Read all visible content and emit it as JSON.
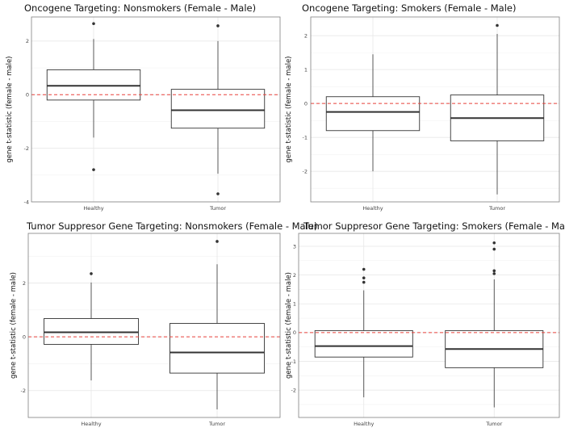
{
  "colors": {
    "background": "#ffffff",
    "grid_major": "#e6e6e6",
    "grid_minor": "#f2f2f2",
    "panel_border": "#7f7f7f",
    "box_fill": "#ffffff",
    "box_line": "#333333",
    "median_line": "#333333",
    "outlier": "#333333",
    "reference_line": "#e8403a"
  },
  "chart_data": [
    {
      "type": "boxplot",
      "title": "Oncogene Targeting: Nonsmokers (Female - Male)",
      "xlabel": "",
      "ylabel": "gene t-statistic (female - male)",
      "categories": [
        "Healthy",
        "Tumor"
      ],
      "ylim": [
        -4.0,
        2.9
      ],
      "yticks": [
        -4,
        -2,
        0,
        2
      ],
      "reference_line": 0,
      "boxes": [
        {
          "category": "Healthy",
          "whisker_low": -1.6,
          "q1": -0.2,
          "median": 0.33,
          "q3": 0.93,
          "whisker_high": 2.08,
          "outliers": [
            2.65,
            -2.8
          ]
        },
        {
          "category": "Tumor",
          "whisker_low": -2.95,
          "q1": -1.25,
          "median": -0.58,
          "q3": 0.2,
          "whisker_high": 2.0,
          "outliers": [
            2.57,
            -3.7
          ]
        }
      ]
    },
    {
      "type": "boxplot",
      "title": "Oncogene Targeting: Smokers (Female - Male)",
      "xlabel": "",
      "ylabel": "gene t-statistic (female - male)",
      "categories": [
        "Healthy",
        "Tumor"
      ],
      "ylim": [
        -2.9,
        2.55
      ],
      "yticks": [
        -2,
        -1,
        0,
        1,
        2
      ],
      "reference_line": 0,
      "boxes": [
        {
          "category": "Healthy",
          "whisker_low": -2.0,
          "q1": -0.8,
          "median": -0.25,
          "q3": 0.2,
          "whisker_high": 1.45,
          "outliers": []
        },
        {
          "category": "Tumor",
          "whisker_low": -2.68,
          "q1": -1.1,
          "median": -0.43,
          "q3": 0.25,
          "whisker_high": 2.05,
          "outliers": [
            2.3
          ]
        }
      ]
    },
    {
      "type": "boxplot",
      "title": "Tumor Suppresor Gene Targeting: Nonsmokers (Female - Male)",
      "xlabel": "",
      "ylabel": "gene t-statistic (female - male)",
      "categories": [
        "Healthy",
        "Tumor"
      ],
      "ylim": [
        -3.0,
        3.85
      ],
      "yticks": [
        -2,
        0,
        2
      ],
      "reference_line": 0,
      "boxes": [
        {
          "category": "Healthy",
          "whisker_low": -1.62,
          "q1": -0.28,
          "median": 0.17,
          "q3": 0.68,
          "whisker_high": 2.02,
          "outliers": [
            2.35
          ]
        },
        {
          "category": "Tumor",
          "whisker_low": -2.7,
          "q1": -1.35,
          "median": -0.58,
          "q3": 0.5,
          "whisker_high": 2.7,
          "outliers": [
            3.55
          ]
        }
      ]
    },
    {
      "type": "boxplot",
      "title": "Tumor Suppresor Gene Targeting: Smokers (Female - Male)",
      "xlabel": "",
      "ylabel": "gene t-statistic (female - male)",
      "categories": [
        "Healthy",
        "Tumor"
      ],
      "ylim": [
        -2.95,
        3.45
      ],
      "yticks": [
        -2,
        -1,
        0,
        1,
        2,
        3
      ],
      "reference_line": 0,
      "boxes": [
        {
          "category": "Healthy",
          "whisker_low": -2.25,
          "q1": -0.85,
          "median": -0.47,
          "q3": 0.07,
          "whisker_high": 1.47,
          "outliers": [
            2.2,
            1.9,
            1.75
          ]
        },
        {
          "category": "Tumor",
          "whisker_low": -2.6,
          "q1": -1.22,
          "median": -0.57,
          "q3": 0.07,
          "whisker_high": 1.85,
          "outliers": [
            3.12,
            2.9,
            2.15,
            2.05
          ]
        }
      ]
    }
  ]
}
